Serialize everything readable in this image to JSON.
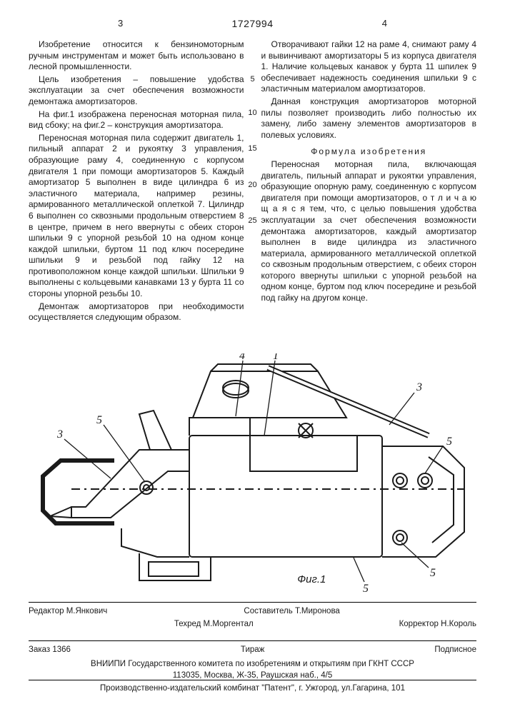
{
  "page_left": "3",
  "page_right": "4",
  "patent_number": "1727994",
  "line_markers": {
    "5": 105,
    "10": 152,
    "15": 202,
    "20": 253,
    "25": 303
  },
  "col_left": {
    "p1": "Изобретение относится к бензиномо­торным ручным инструментам и может быть использовано в лесной промышленности.",
    "p2": "Цель изобретения – повышение удобст­ва эксплуатации за счет обеспечения воз­можности демонтажа амортизаторов.",
    "p3": "На фиг.1 изображена переносная мо­торная пила, вид сбоку; на фиг.2 – конструк­ция амортизатора.",
    "p4": "Переносная моторная пила содержит двигатель 1, пильный аппарат 2 и рукоятку 3 управления, образующие раму 4, соединен­ную с корпусом двигателя 1 при помощи амор­тизаторов 5. Каждый амортизатор 5 выполнен в виде цилиндра 6 из эластичного материала, например резины, армированного металли­ческой оплеткой 7. Цилиндр 6 выполнен со сквозными продольным отверстием 8 в цент­ре, причем в него ввернуты с обеих сторон шпильки 9 с упорной резьбой 10 на одном конце каждой шпильки, буртом 11 под ключ посередине шпильки 9 и резьбой под гайку 12 на противоположном конце каждой шпильки. Шпильки 9 выполнены с кольце­выми канавками 13 у бурта 11 со стороны упорной резьбы 10.",
    "p5": "Демонтаж амортизаторов при необходи­мости осуществляется следующим образом."
  },
  "col_right": {
    "p1": "Отворачивают гайки 12 на раме 4, сни­мают раму 4 и вывинчивают амортизаторы 5 из корпуса двигателя 1. Наличие кольце­вых канавок у бурта 11 шпилек 9 обеспечи­вает надежность соединения шпильки 9 с эластичным материалом амортизаторов.",
    "p2": "Данная конструкция амортизаторов мо­торной пилы позволяет производить либо полностью их замену, либо замену элемен­тов амортизаторов в полевых условиях.",
    "formula_title": "Формула изобретения",
    "p3": "Переносная моторная пила, включаю­щая двигатель, пильный аппарат и рукоятки управления, образующие опорную раму, со­единенную с корпусом двигателя при помо­щи амортизаторов, о т л и ч а ю щ а я с я тем, что, с целью повышения удобства эксплуа­тации за счет обеспечения возможности демонтажа амортизаторов, каждый амортизатор выполнен в виде цилиндра из эластичного материала, армированного металлической оплеткой со сквозным про­дольным отверстием, с обеих сторон кото­рого ввернуты шпильки с упорной резьбой на одном конце, буртом под ключ посереди­не и резьбой под гайку на другом конце."
  },
  "figure": {
    "label": "Фиг.1",
    "callouts": [
      "3",
      "5",
      "4",
      "1",
      "3",
      "5",
      "5",
      "5"
    ],
    "stroke": "#1a1a1a",
    "fill": "#ffffff"
  },
  "credits": {
    "editor_label": "Редактор",
    "editor": "М.Янкович",
    "compiler_label": "Составитель",
    "compiler": "Т.Миронова",
    "techred_label": "Техред",
    "techred": "М.Моргентал",
    "corrector_label": "Корректор",
    "corrector": "Н.Король"
  },
  "pub": {
    "order_label": "Заказ",
    "order": "1366",
    "tirazh_label": "Тираж",
    "podpisnoe": "Подписное",
    "org": "ВНИИПИ Государственного комитета по изобретениям и открытиям при ГКНТ СССР",
    "address": "113035, Москва, Ж-35, Раушская наб., 4/5",
    "printer": "Производственно-издательский комбинат \"Патент\", г. Ужгород, ул.Гагарина, 101"
  }
}
